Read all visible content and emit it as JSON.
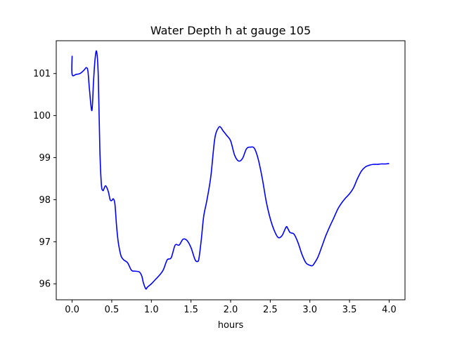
{
  "chart_data": {
    "type": "line",
    "title": "Water Depth h at gauge 105",
    "xlabel": "hours",
    "ylabel": "",
    "xlim": [
      -0.2,
      4.2
    ],
    "ylim": [
      95.62,
      101.78
    ],
    "xticks": [
      0.0,
      0.5,
      1.0,
      1.5,
      2.0,
      2.5,
      3.0,
      3.5,
      4.0
    ],
    "xtick_labels": [
      "0.0",
      "0.5",
      "1.0",
      "1.5",
      "2.0",
      "2.5",
      "3.0",
      "3.5",
      "4.0"
    ],
    "yticks": [
      96,
      97,
      98,
      99,
      100,
      101
    ],
    "ytick_labels": [
      "96",
      "97",
      "98",
      "99",
      "100",
      "101"
    ],
    "grid": false,
    "legend": "none",
    "series": [
      {
        "color": "#0000ff",
        "x": [
          0.0,
          0.0,
          0.05,
          0.1,
          0.15,
          0.18,
          0.2,
          0.22,
          0.25,
          0.27,
          0.29,
          0.31,
          0.33,
          0.35,
          0.37,
          0.39,
          0.4,
          0.42,
          0.44,
          0.46,
          0.48,
          0.5,
          0.52,
          0.54,
          0.56,
          0.58,
          0.6,
          0.62,
          0.65,
          0.7,
          0.75,
          0.8,
          0.85,
          0.88,
          0.9,
          0.93,
          0.95,
          1.0,
          1.05,
          1.1,
          1.15,
          1.2,
          1.25,
          1.3,
          1.35,
          1.4,
          1.45,
          1.5,
          1.55,
          1.58,
          1.6,
          1.63,
          1.66,
          1.7,
          1.75,
          1.8,
          1.85,
          1.88,
          1.9,
          1.95,
          2.0,
          2.05,
          2.1,
          2.15,
          2.2,
          2.25,
          2.3,
          2.35,
          2.4,
          2.45,
          2.5,
          2.55,
          2.6,
          2.65,
          2.7,
          2.72,
          2.75,
          2.8,
          2.85,
          2.9,
          2.95,
          3.0,
          3.03,
          3.05,
          3.1,
          3.15,
          3.2,
          3.25,
          3.3,
          3.35,
          3.4,
          3.45,
          3.5,
          3.55,
          3.6,
          3.65,
          3.7,
          3.75,
          3.8,
          3.85,
          3.9,
          3.95,
          4.0
        ],
        "y": [
          101.42,
          100.98,
          100.98,
          101.0,
          101.08,
          101.14,
          101.05,
          100.6,
          100.12,
          100.8,
          101.35,
          101.52,
          100.95,
          99.2,
          98.35,
          98.22,
          98.25,
          98.33,
          98.28,
          98.17,
          98.0,
          97.98,
          98.02,
          97.9,
          97.4,
          97.02,
          96.8,
          96.65,
          96.57,
          96.5,
          96.32,
          96.3,
          96.28,
          96.18,
          96.02,
          95.88,
          95.92,
          96.0,
          96.1,
          96.2,
          96.33,
          96.57,
          96.62,
          96.92,
          96.92,
          97.06,
          97.03,
          96.86,
          96.58,
          96.53,
          96.6,
          97.05,
          97.6,
          97.98,
          98.55,
          99.45,
          99.72,
          99.71,
          99.65,
          99.53,
          99.4,
          99.06,
          98.92,
          98.98,
          99.21,
          99.25,
          99.22,
          98.95,
          98.5,
          97.95,
          97.55,
          97.27,
          97.1,
          97.15,
          97.35,
          97.32,
          97.22,
          97.18,
          96.98,
          96.7,
          96.5,
          96.44,
          96.43,
          96.47,
          96.63,
          96.88,
          97.14,
          97.36,
          97.56,
          97.77,
          97.92,
          98.04,
          98.14,
          98.28,
          98.5,
          98.68,
          98.78,
          98.82,
          98.84,
          98.84,
          98.85,
          98.85,
          98.86
        ]
      }
    ]
  }
}
